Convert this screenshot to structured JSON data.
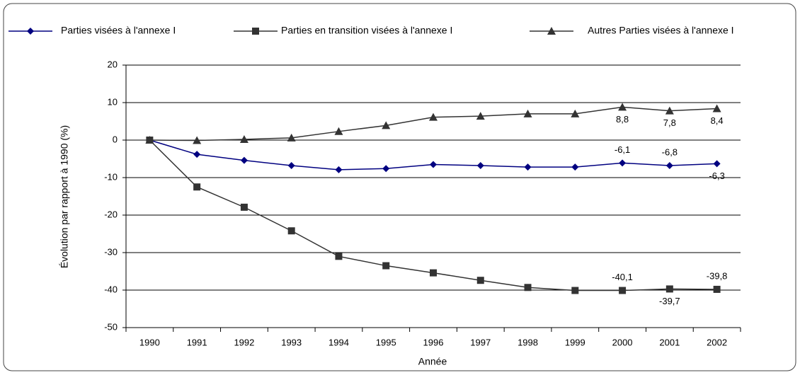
{
  "chart_data": {
    "type": "line",
    "y_label": "Évolution par rapport à 1990 (%)",
    "x_label": "Année",
    "categories": [
      "1990",
      "1991",
      "1992",
      "1993",
      "1994",
      "1995",
      "1996",
      "1997",
      "1998",
      "1999",
      "2000",
      "2001",
      "2002"
    ],
    "series": [
      {
        "name": "Parties visées à l'annexe I",
        "color": "#000080",
        "marker": "diamond",
        "values": [
          0,
          -3.8,
          -5.4,
          -6.8,
          -7.9,
          -7.6,
          -6.5,
          -6.8,
          -7.2,
          -7.2,
          -6.1,
          -6.8,
          -6.3
        ],
        "value_labels": [
          null,
          null,
          null,
          null,
          null,
          null,
          null,
          null,
          null,
          null,
          "-6,1",
          "-6,8",
          "-6,3"
        ]
      },
      {
        "name": "Parties en transition visées à l'annexe I",
        "color": "#333333",
        "marker": "square",
        "values": [
          0,
          -12.5,
          -17.9,
          -24.2,
          -31.0,
          -33.5,
          -35.4,
          -37.4,
          -39.3,
          -40.1,
          -40.1,
          -39.7,
          -39.8
        ],
        "value_labels": [
          null,
          null,
          null,
          null,
          null,
          null,
          null,
          null,
          null,
          null,
          "-40,1",
          "-39,7",
          "-39,8"
        ]
      },
      {
        "name": "Autres Parties visées à l'annexe I",
        "color": "#333333",
        "marker": "triangle",
        "values": [
          0,
          -0.1,
          0.2,
          0.6,
          2.3,
          3.9,
          6.1,
          6.4,
          7.0,
          7.0,
          8.8,
          7.8,
          8.4
        ],
        "value_labels": [
          null,
          null,
          null,
          null,
          null,
          null,
          null,
          null,
          null,
          null,
          "8,8",
          "7,8",
          "8,4"
        ]
      }
    ],
    "ylim": [
      -50,
      20
    ],
    "yticks": [
      -50,
      -40,
      -30,
      -20,
      -10,
      0,
      10,
      20
    ],
    "grid": true,
    "legend": "top"
  }
}
